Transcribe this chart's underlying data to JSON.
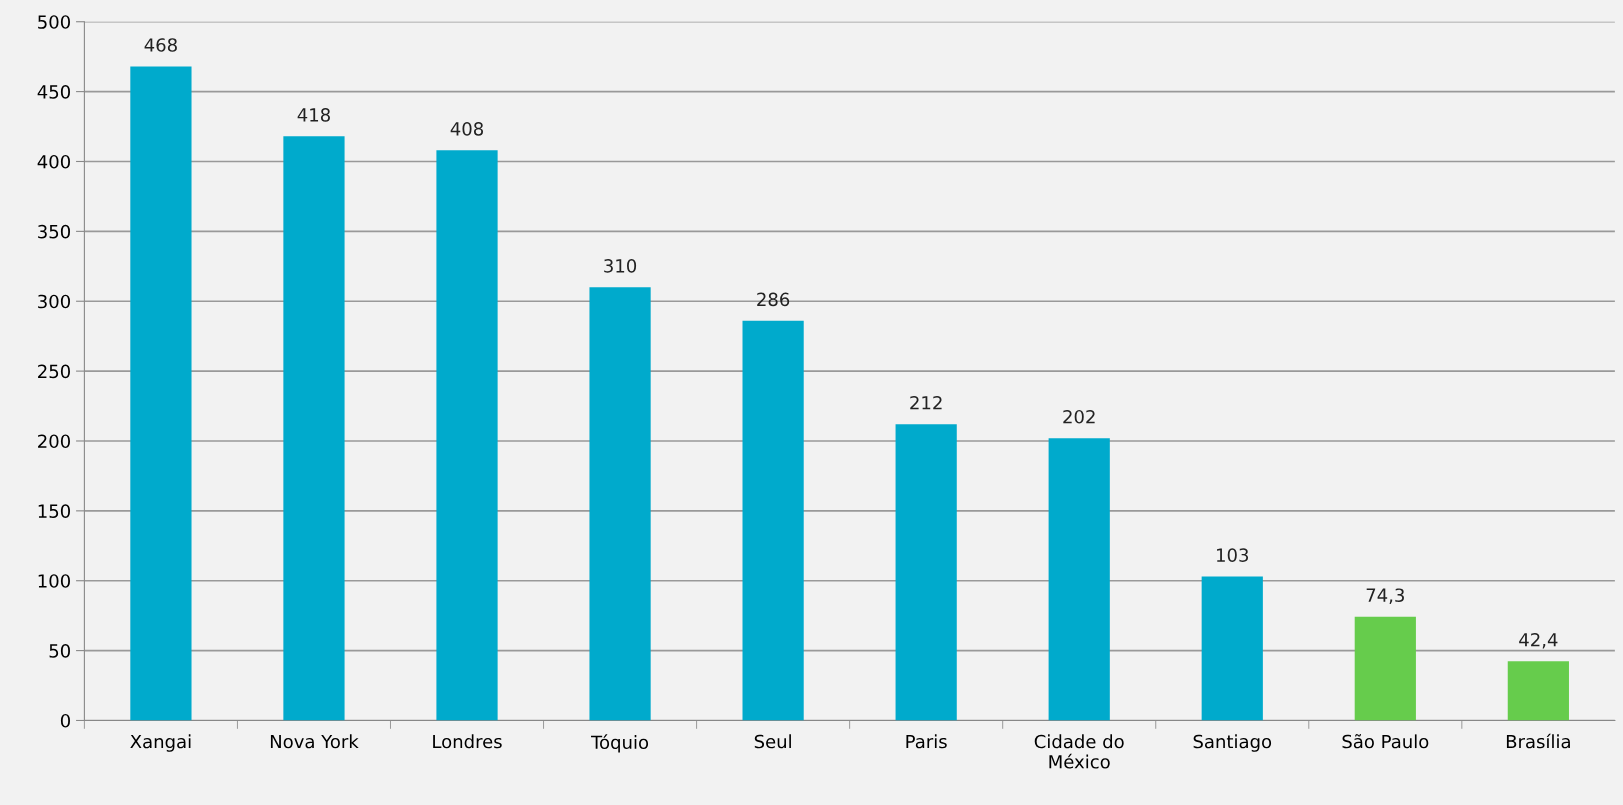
{
  "chart_data": {
    "type": "bar",
    "categories": [
      "Xangai",
      "Nova York",
      "Londres",
      "Tóquio",
      "Seul",
      "Paris",
      "Cidade do\nMéxico",
      "Santiago",
      "São Paulo",
      "Brasília"
    ],
    "values": [
      468,
      418,
      408,
      310,
      286,
      212,
      202,
      103,
      74.3,
      42.4
    ],
    "colors": [
      "#00aacc",
      "#00aacc",
      "#00aacc",
      "#00aacc",
      "#00aacc",
      "#00aacc",
      "#00aacc",
      "#00aacc",
      "#66cc4c",
      "#66cc4c"
    ],
    "value_labels": [
      "468",
      "418",
      "408",
      "310",
      "286",
      "212",
      "202",
      "103",
      "74,3",
      "42,4"
    ],
    "ylim": [
      0,
      500
    ],
    "yticks": [
      0,
      50,
      100,
      150,
      200,
      250,
      300,
      350,
      400,
      450,
      500
    ],
    "grid": "y"
  }
}
